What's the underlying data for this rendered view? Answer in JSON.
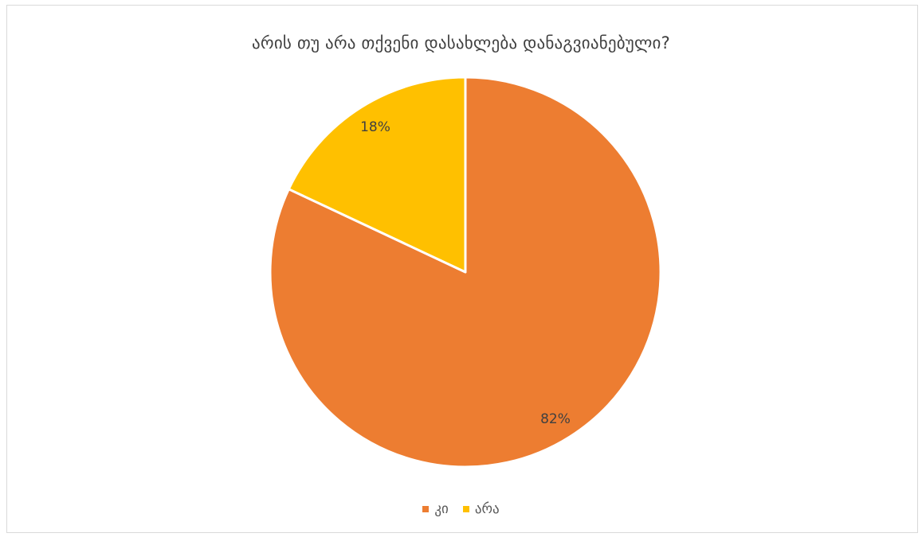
{
  "chart_data": {
    "type": "pie",
    "title": "არის თუ არა თქვენი დასახლება დანაგვიანებული?",
    "categories": [
      "კი",
      "არა"
    ],
    "values": [
      82,
      18
    ],
    "data_labels": [
      "82%",
      "18%"
    ],
    "colors": [
      "#ED7D31",
      "#FFC000"
    ],
    "legend_position": "bottom",
    "start_angle": "top, clockwise"
  }
}
